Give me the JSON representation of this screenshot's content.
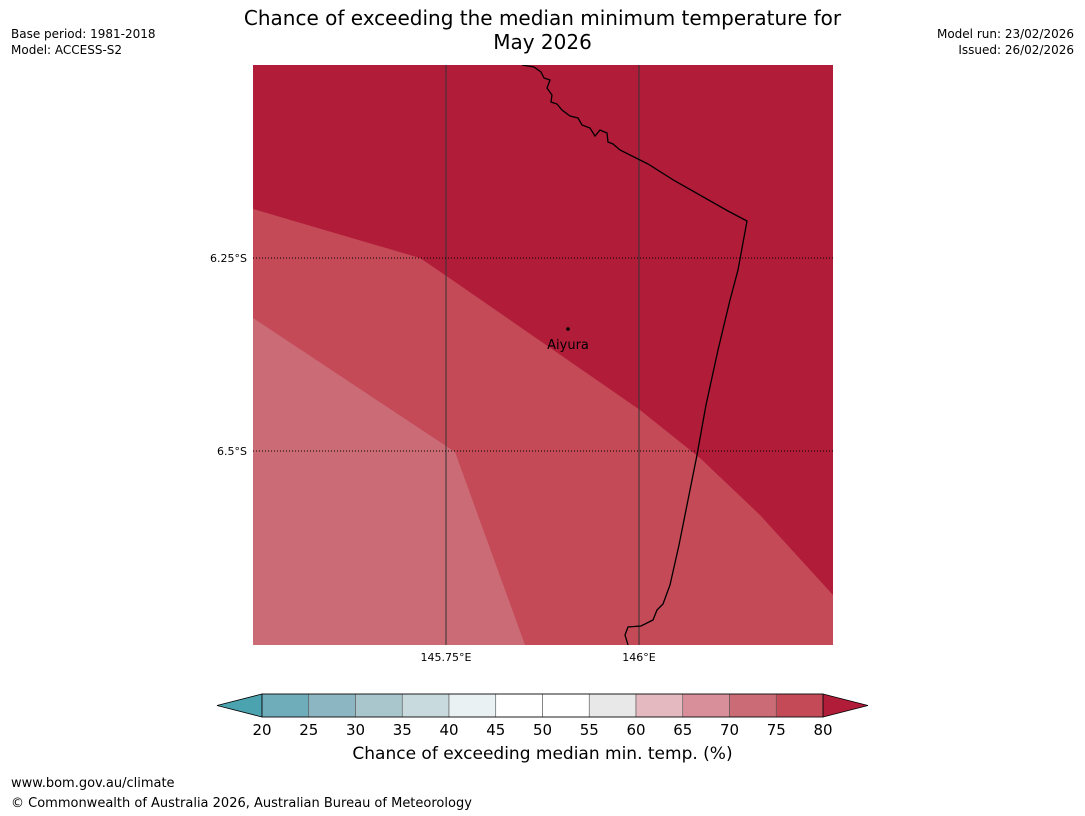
{
  "title": {
    "line1": "Chance of exceeding the median minimum temperature for",
    "line2": "May 2026"
  },
  "meta": {
    "base_period": "Base period: 1981-2018",
    "model": "Model: ACCESS-S2",
    "model_run": "Model run: 23/02/2026",
    "issued": "Issued: 26/02/2026"
  },
  "map": {
    "lat_labels": [
      "6.25°S",
      "6.5°S"
    ],
    "lon_labels": [
      "145.75°E",
      "146°E"
    ],
    "place": "Aiyura",
    "zone_colors": {
      "75-80": "#c44a57",
      "70-75": "#cb6b76",
      "80+": "#b11c39"
    }
  },
  "colorbar": {
    "ticks": [
      "20",
      "25",
      "30",
      "35",
      "40",
      "45",
      "50",
      "55",
      "60",
      "65",
      "70",
      "75",
      "80"
    ],
    "colors": [
      "#6fadbb",
      "#8db6c3",
      "#a9c6cd",
      "#c8dadd",
      "#eaf1f3",
      "#ffffff",
      "#ffffff",
      "#e8e8e8",
      "#e4b9bf",
      "#d98f99",
      "#cb6b76",
      "#c44a57"
    ],
    "under_color": "#4ba3b0",
    "over_color": "#b11c39",
    "label": "Chance of exceeding median min. temp. (%)"
  },
  "footer": {
    "url": "www.bom.gov.au/climate",
    "copyright": "© Commonwealth of Australia 2026, Australian Bureau of Meteorology"
  }
}
